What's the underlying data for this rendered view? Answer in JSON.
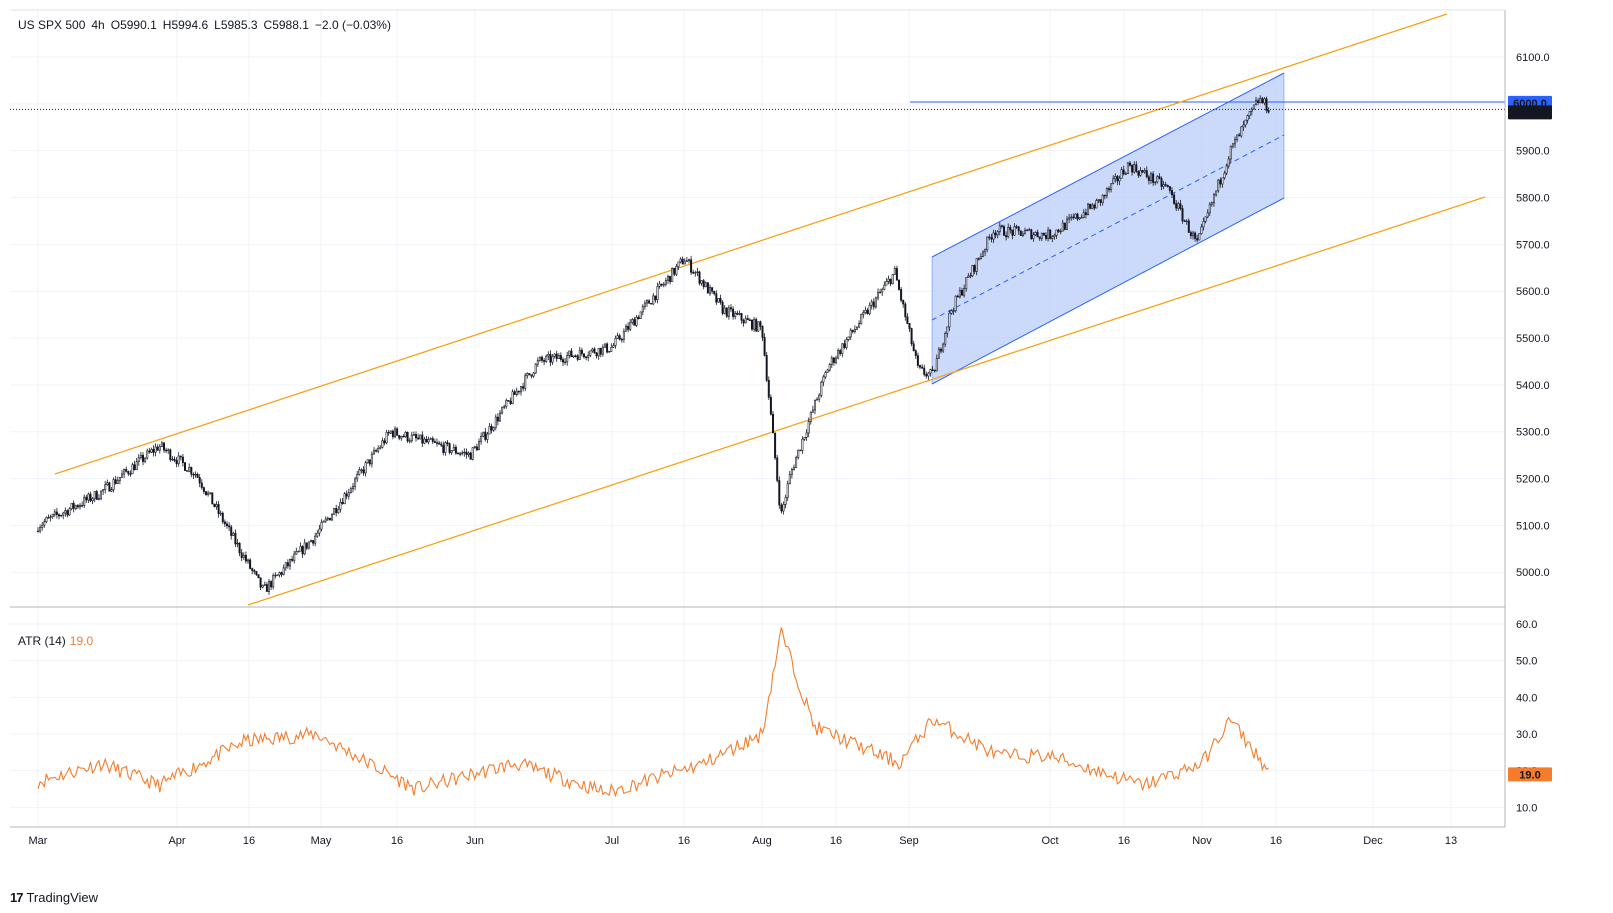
{
  "header": {
    "symbol": "US SPX 500",
    "interval": "4h",
    "open": "O5990.1",
    "high": "H5994.6",
    "low": "L5985.3",
    "close": "C5988.1",
    "change": "−2.0 (−0.03%)"
  },
  "atr_header": {
    "label": "ATR (14)",
    "value": "19.0"
  },
  "brand": {
    "name": "TradingView",
    "logo": "17"
  },
  "price_axis": {
    "ticks": [
      "6100.0",
      "6000.0",
      "5900.0",
      "5800.0",
      "5700.0",
      "5600.0",
      "5500.0",
      "5400.0",
      "5300.0",
      "5200.0",
      "5100.0",
      "5000.0"
    ],
    "badge_level": "6000.0",
    "badge_last": "5988.1"
  },
  "atr_axis": {
    "ticks": [
      "60.0",
      "50.0",
      "40.0",
      "30.0",
      "20.0",
      "10.0"
    ],
    "badge": "19.0"
  },
  "time_axis": {
    "labels": [
      "Mar",
      "Apr",
      "16",
      "May",
      "16",
      "Jun",
      "Jul",
      "16",
      "Aug",
      "16",
      "Sep",
      "Oct",
      "16",
      "Nov",
      "16",
      "Dec",
      "13"
    ]
  },
  "colors": {
    "candle": "#131722",
    "channel_line": "#f7a21b",
    "regression_line": "#2962ff",
    "regression_fill": "#b9cdf8",
    "atr_line": "#f57c2a",
    "badge_blue": "#2962ff",
    "badge_black": "#131722",
    "badge_orange": "#f57c2a"
  },
  "chart_data": [
    {
      "type": "line",
      "title": "US SPX 500, 4h",
      "x": [
        "Mar 1",
        "Mar 15",
        "Mar 28",
        "Apr 5",
        "Apr 19",
        "Apr 30",
        "May 15",
        "May 31",
        "Jun 15",
        "Jul 1",
        "Jul 16",
        "Jul 24",
        "Aug 1",
        "Aug 5",
        "Aug 7",
        "Aug 15",
        "Aug 29",
        "Sep 3",
        "Sep 6",
        "Sep 10",
        "Sep 19",
        "Oct 1",
        "Oct 11",
        "Oct 17",
        "Oct 25",
        "Oct 31",
        "Nov 6",
        "Nov 11",
        "Nov 13"
      ],
      "series": [
        {
          "values": [
            5100,
            5170,
            5270,
            5210,
            4960,
            5080,
            5300,
            5250,
            5450,
            5480,
            5670,
            5560,
            5520,
            5120,
            5210,
            5440,
            5640,
            5430,
            5420,
            5560,
            5730,
            5720,
            5790,
            5870,
            5820,
            5700,
            5900,
            6010,
            5988
          ]
        }
      ],
      "ylim": [
        4930,
        6130
      ]
    },
    {
      "type": "line",
      "title": "ATR (14)",
      "x": [
        "Mar 1",
        "Mar 15",
        "Mar 28",
        "Apr 15",
        "Apr 30",
        "May 20",
        "Jun 10",
        "Jun 30",
        "Jul 20",
        "Aug 1",
        "Aug 5",
        "Aug 12",
        "Aug 30",
        "Sep 6",
        "Sep 20",
        "Oct 1",
        "Oct 20",
        "Nov 1",
        "Nov 6",
        "Nov 13"
      ],
      "series": [
        {
          "values": [
            17,
            22,
            16,
            28,
            30,
            15,
            22,
            14,
            22,
            30,
            58,
            32,
            22,
            34,
            24,
            24,
            16,
            22,
            34,
            19
          ]
        }
      ],
      "ylim": [
        4,
        63
      ]
    }
  ]
}
